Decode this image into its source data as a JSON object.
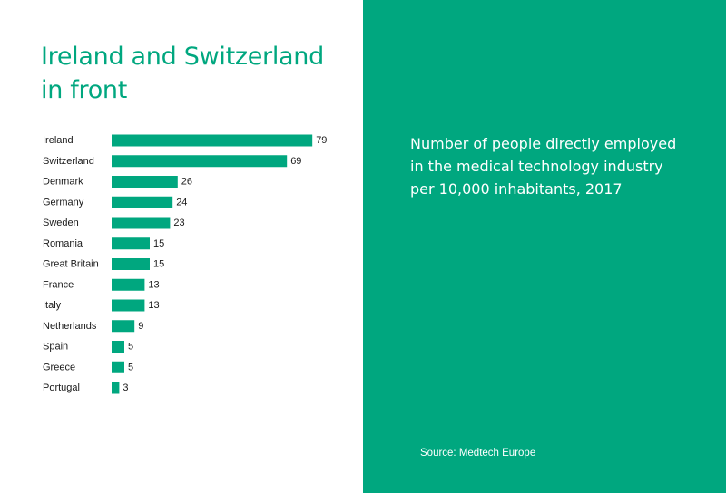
{
  "colors": {
    "accent": "#00a77f",
    "text": "#1a1a1a",
    "white": "#ffffff"
  },
  "title_lines": [
    "Ireland and Switzerland",
    "in front"
  ],
  "description_lines": [
    "Number of people directly employed",
    "in the medical technology industry",
    "per 10,000 inhabitants, 2017"
  ],
  "source": "Source: Medtech Europe",
  "chart_data": {
    "type": "bar",
    "orientation": "horizontal",
    "title": "",
    "xlabel": "",
    "ylabel": "",
    "xlim": [
      0,
      80
    ],
    "grid": false,
    "data_labels": true,
    "categories": [
      "Ireland",
      "Switzerland",
      "Denmark",
      "Germany",
      "Sweden",
      "Romania",
      "Great Britain",
      "France",
      "Italy",
      "Netherlands",
      "Spain",
      "Greece",
      "Portugal"
    ],
    "values": [
      79,
      69,
      26,
      24,
      23,
      15,
      15,
      13,
      13,
      9,
      5,
      5,
      3
    ]
  }
}
